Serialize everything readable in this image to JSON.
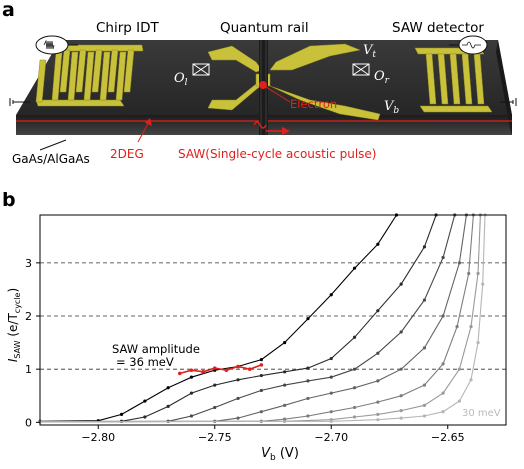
{
  "figure_a": {
    "panel_label": "a",
    "chirp_idt": "Chirp IDT",
    "quantum_rail": "Quantum rail",
    "saw_detector": "SAW detector",
    "vt": "V",
    "vt_sub": "t",
    "vb": "V",
    "vb_sub": "b",
    "ol": "O",
    "ol_sub": "l",
    "or": "O",
    "or_sub": "r",
    "electron": "Electron",
    "gaas": "GaAs/AlGaAs",
    "deg2": "2DEG",
    "saw_pulse": "SAW(Single-cycle acoustic pulse)",
    "colors": {
      "chip": "#2b2b2b",
      "gold": "#c9c13a",
      "red": "#e0201b"
    }
  },
  "figure_b": {
    "panel_label": "b",
    "chart_data": {
      "type": "line",
      "xlabel_main": "V",
      "xlabel_sub": "b",
      "xlabel_unit": " (V)",
      "ylabel_main": "I",
      "ylabel_sub": "SAW",
      "ylabel_unit_open": " (e/T",
      "ylabel_unit_sub": "cycle",
      "ylabel_unit_close": ")",
      "xlim": [
        -2.825,
        -2.625
      ],
      "ylim": [
        -0.05,
        3.9
      ],
      "xticks": [
        -2.8,
        -2.75,
        -2.7,
        -2.65
      ],
      "xtick_labels": [
        "−2.80",
        "−2.75",
        "−2.70",
        "−2.65"
      ],
      "yticks": [
        0,
        1,
        2,
        3
      ],
      "ytick_labels": [
        "0",
        "1",
        "2",
        "3"
      ],
      "hlines": [
        1,
        2,
        3
      ],
      "annotation_line1": "SAW amplitude",
      "annotation_line2": "= 36 meV",
      "annotation_low": "30 meV",
      "series": [
        {
          "color": "#000000",
          "points": [
            [
              -2.825,
              0.02
            ],
            [
              -2.8,
              0.03
            ],
            [
              -2.79,
              0.15
            ],
            [
              -2.78,
              0.4
            ],
            [
              -2.77,
              0.65
            ],
            [
              -2.76,
              0.85
            ],
            [
              -2.75,
              0.98
            ],
            [
              -2.74,
              1.05
            ],
            [
              -2.73,
              1.18
            ],
            [
              -2.72,
              1.5
            ],
            [
              -2.71,
              1.95
            ],
            [
              -2.7,
              2.4
            ],
            [
              -2.69,
              2.9
            ],
            [
              -2.68,
              3.35
            ],
            [
              -2.672,
              3.9
            ]
          ]
        },
        {
          "color": "#2a2a2a",
          "points": [
            [
              -2.825,
              0.01
            ],
            [
              -2.79,
              0.02
            ],
            [
              -2.78,
              0.1
            ],
            [
              -2.77,
              0.3
            ],
            [
              -2.76,
              0.55
            ],
            [
              -2.75,
              0.7
            ],
            [
              -2.74,
              0.8
            ],
            [
              -2.73,
              0.88
            ],
            [
              -2.72,
              0.95
            ],
            [
              -2.71,
              1.02
            ],
            [
              -2.7,
              1.2
            ],
            [
              -2.69,
              1.6
            ],
            [
              -2.68,
              2.1
            ],
            [
              -2.67,
              2.6
            ],
            [
              -2.66,
              3.3
            ],
            [
              -2.655,
              3.9
            ]
          ]
        },
        {
          "color": "#484848",
          "points": [
            [
              -2.825,
              0.01
            ],
            [
              -2.77,
              0.02
            ],
            [
              -2.76,
              0.12
            ],
            [
              -2.75,
              0.28
            ],
            [
              -2.74,
              0.45
            ],
            [
              -2.73,
              0.6
            ],
            [
              -2.72,
              0.7
            ],
            [
              -2.71,
              0.78
            ],
            [
              -2.7,
              0.85
            ],
            [
              -2.69,
              1.0
            ],
            [
              -2.68,
              1.3
            ],
            [
              -2.67,
              1.7
            ],
            [
              -2.66,
              2.3
            ],
            [
              -2.652,
              3.1
            ],
            [
              -2.647,
              3.9
            ]
          ]
        },
        {
          "color": "#646464",
          "points": [
            [
              -2.825,
              0.01
            ],
            [
              -2.75,
              0.02
            ],
            [
              -2.74,
              0.08
            ],
            [
              -2.73,
              0.2
            ],
            [
              -2.72,
              0.32
            ],
            [
              -2.71,
              0.45
            ],
            [
              -2.7,
              0.55
            ],
            [
              -2.69,
              0.65
            ],
            [
              -2.68,
              0.78
            ],
            [
              -2.67,
              1.0
            ],
            [
              -2.66,
              1.4
            ],
            [
              -2.652,
              2.0
            ],
            [
              -2.645,
              3.0
            ],
            [
              -2.642,
              3.9
            ]
          ]
        },
        {
          "color": "#7e7e7e",
          "points": [
            [
              -2.825,
              0.01
            ],
            [
              -2.73,
              0.02
            ],
            [
              -2.72,
              0.06
            ],
            [
              -2.71,
              0.12
            ],
            [
              -2.7,
              0.2
            ],
            [
              -2.69,
              0.28
            ],
            [
              -2.68,
              0.38
            ],
            [
              -2.67,
              0.5
            ],
            [
              -2.66,
              0.7
            ],
            [
              -2.652,
              1.1
            ],
            [
              -2.646,
              1.8
            ],
            [
              -2.641,
              2.8
            ],
            [
              -2.639,
              3.9
            ]
          ]
        },
        {
          "color": "#999999",
          "points": [
            [
              -2.825,
              0.01
            ],
            [
              -2.72,
              0.02
            ],
            [
              -2.7,
              0.05
            ],
            [
              -2.69,
              0.1
            ],
            [
              -2.68,
              0.15
            ],
            [
              -2.67,
              0.22
            ],
            [
              -2.66,
              0.32
            ],
            [
              -2.652,
              0.55
            ],
            [
              -2.645,
              1.0
            ],
            [
              -2.64,
              1.8
            ],
            [
              -2.637,
              2.8
            ],
            [
              -2.636,
              3.9
            ]
          ]
        },
        {
          "color": "#b5b5b5",
          "points": [
            [
              -2.825,
              0.01
            ],
            [
              -2.7,
              0.02
            ],
            [
              -2.68,
              0.05
            ],
            [
              -2.67,
              0.08
            ],
            [
              -2.66,
              0.12
            ],
            [
              -2.652,
              0.2
            ],
            [
              -2.645,
              0.4
            ],
            [
              -2.64,
              0.8
            ],
            [
              -2.637,
              1.5
            ],
            [
              -2.635,
              2.6
            ],
            [
              -2.634,
              3.9
            ]
          ]
        }
      ],
      "highlight": {
        "color": "#e0201b",
        "points": [
          [
            -2.765,
            0.92
          ],
          [
            -2.76,
            0.98
          ],
          [
            -2.755,
            0.95
          ],
          [
            -2.75,
            1.02
          ],
          [
            -2.745,
            0.98
          ],
          [
            -2.74,
            1.05
          ],
          [
            -2.735,
            1.0
          ],
          [
            -2.73,
            1.08
          ]
        ]
      }
    }
  }
}
